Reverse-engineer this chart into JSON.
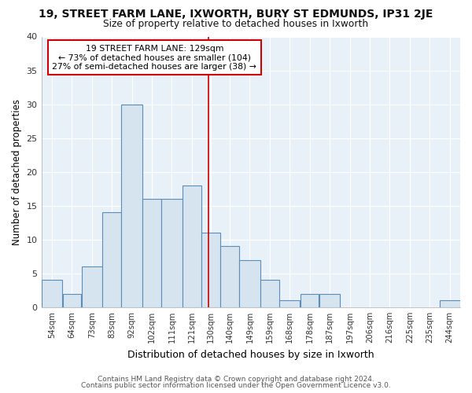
{
  "title_line1": "19, STREET FARM LANE, IXWORTH, BURY ST EDMUNDS, IP31 2JE",
  "title_line2": "Size of property relative to detached houses in Ixworth",
  "xlabel": "Distribution of detached houses by size in Ixworth",
  "ylabel": "Number of detached properties",
  "bar_labels": [
    "54sqm",
    "64sqm",
    "73sqm",
    "83sqm",
    "92sqm",
    "102sqm",
    "111sqm",
    "121sqm",
    "130sqm",
    "140sqm",
    "149sqm",
    "159sqm",
    "168sqm",
    "178sqm",
    "187sqm",
    "197sqm",
    "206sqm",
    "216sqm",
    "225sqm",
    "235sqm",
    "244sqm"
  ],
  "bar_heights": [
    4,
    2,
    6,
    14,
    30,
    16,
    16,
    18,
    11,
    9,
    7,
    4,
    1,
    2,
    2,
    0,
    0,
    0,
    0,
    0,
    1
  ],
  "bar_edges": [
    49.5,
    59.5,
    68.5,
    78.5,
    87.5,
    97.5,
    106.5,
    116.5,
    125.5,
    134.5,
    143.5,
    153.5,
    162.5,
    172.5,
    181.5,
    191.5,
    200.5,
    210.5,
    219.5,
    229.5,
    238.5,
    248.5
  ],
  "bar_color": "#d6e4f0",
  "bar_edge_color": "#5b8db8",
  "vline_x": 129,
  "vline_color": "#cc0000",
  "annotation_text": "19 STREET FARM LANE: 129sqm\n← 73% of detached houses are smaller (104)\n27% of semi-detached houses are larger (38) →",
  "annotation_box_color": "#ffffff",
  "annotation_box_edge": "#cc0000",
  "ylim": [
    0,
    40
  ],
  "yticks": [
    0,
    5,
    10,
    15,
    20,
    25,
    30,
    35,
    40
  ],
  "fig_background": "#ffffff",
  "plot_bg_color": "#e8f0f8",
  "footer_line1": "Contains HM Land Registry data © Crown copyright and database right 2024.",
  "footer_line2": "Contains public sector information licensed under the Open Government Licence v3.0."
}
